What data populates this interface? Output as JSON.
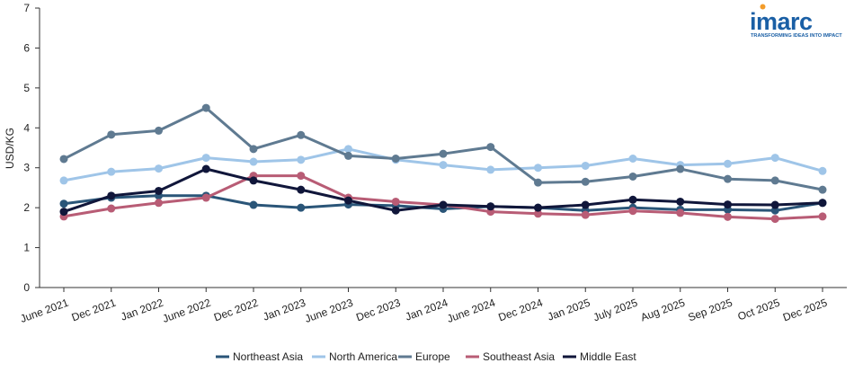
{
  "logo": {
    "text": "imarc",
    "tagline": "TRANSFORMING IDEAS INTO IMPACT",
    "color": "#1a5fa5",
    "dot_color": "#f39c2a"
  },
  "chart_data": {
    "type": "line",
    "title": "",
    "xlabel": "",
    "ylabel": "USD/KG",
    "ylim": [
      0,
      7
    ],
    "yticks": [
      0,
      1,
      2,
      3,
      4,
      5,
      6,
      7
    ],
    "grid": false,
    "legend_position": "bottom",
    "categories": [
      "June 2021",
      "Dec 2021",
      "Jan 2022",
      "June 2022",
      "Dec 2022",
      "Jan 2023",
      "June 2023",
      "Dec 2023",
      "Jan 2024",
      "June 2024",
      "Dec 2024",
      "Jan 2025",
      "July 2025",
      "Aug 2025",
      "Sep 2025",
      "Oct 2025",
      "Dec 2025"
    ],
    "series": [
      {
        "name": "Northeast Asia",
        "color": "#2a5578",
        "values": [
          2.1,
          2.25,
          2.3,
          2.3,
          2.07,
          2.0,
          2.08,
          2.05,
          1.97,
          2.03,
          2.0,
          1.93,
          2.0,
          1.95,
          1.95,
          1.93,
          2.12
        ]
      },
      {
        "name": "North America",
        "color": "#9fc5e8",
        "values": [
          2.68,
          2.9,
          2.98,
          3.25,
          3.15,
          3.2,
          3.47,
          3.2,
          3.07,
          2.95,
          3.0,
          3.05,
          3.23,
          3.07,
          3.1,
          3.25,
          2.92
        ]
      },
      {
        "name": "Europe",
        "color": "#5f7a91",
        "values": [
          3.22,
          3.83,
          3.93,
          4.5,
          3.47,
          3.82,
          3.3,
          3.23,
          3.35,
          3.52,
          2.63,
          2.65,
          2.78,
          2.97,
          2.72,
          2.68,
          2.45
        ]
      },
      {
        "name": "Southeast Asia",
        "color": "#b85c75",
        "values": [
          1.78,
          1.98,
          2.12,
          2.25,
          2.8,
          2.8,
          2.25,
          2.15,
          2.07,
          1.9,
          1.85,
          1.82,
          1.92,
          1.87,
          1.77,
          1.72,
          1.78
        ]
      },
      {
        "name": "Middle East",
        "color": "#10163a",
        "values": [
          1.9,
          2.3,
          2.42,
          2.97,
          2.68,
          2.45,
          2.18,
          1.93,
          2.07,
          2.03,
          2.0,
          2.07,
          2.2,
          2.15,
          2.08,
          2.07,
          2.12
        ]
      }
    ]
  }
}
